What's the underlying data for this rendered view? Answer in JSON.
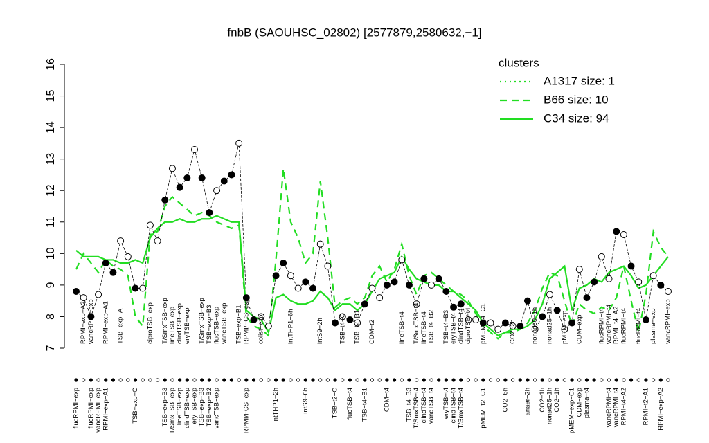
{
  "chart_data": {
    "type": "profile",
    "title": "fnbB (SAOUHSC_02802) [2577879,2580632,−1]",
    "ylim": [
      7,
      16
    ],
    "yticks": [
      7,
      8,
      9,
      10,
      11,
      12,
      13,
      14,
      15,
      16
    ],
    "legend_title": "clusters",
    "legend_corner": "top-right",
    "values": [
      8.8,
      8.6,
      8.0,
      8.7,
      9.7,
      9.4,
      10.4,
      9.9,
      8.9,
      8.9,
      10.9,
      10.4,
      11.7,
      12.7,
      12.1,
      12.4,
      13.3,
      12.4,
      11.3,
      12.0,
      12.3,
      12.5,
      13.5,
      8.6,
      7.9,
      8.0,
      7.7,
      9.3,
      9.7,
      9.3,
      8.9,
      9.1,
      8.9,
      10.3,
      9.6,
      7.8,
      8.0,
      7.9,
      7.8,
      8.4,
      8.9,
      8.6,
      9.0,
      9.1,
      9.8,
      9.0,
      8.4,
      9.2,
      9.0,
      9.2,
      8.8,
      8.3,
      8.4,
      7.9,
      7.9,
      7.8,
      7.8,
      7.6,
      7.8,
      7.7,
      7.7,
      8.5,
      7.6,
      8.0,
      8.7,
      8.2,
      7.6,
      7.8,
      9.5,
      8.6,
      9.1,
      9.9,
      9.2,
      10.7,
      10.6,
      9.6,
      9.1,
      7.9,
      9.3,
      9.0,
      8.8
    ],
    "filled": [
      true,
      false,
      true,
      false,
      true,
      true,
      false,
      false,
      true,
      false,
      false,
      false,
      true,
      false,
      true,
      true,
      false,
      true,
      true,
      false,
      true,
      true,
      false,
      true,
      true,
      false,
      false,
      true,
      true,
      false,
      false,
      true,
      true,
      false,
      false,
      true,
      false,
      true,
      false,
      true,
      false,
      false,
      true,
      true,
      false,
      true,
      false,
      true,
      false,
      true,
      true,
      true,
      true,
      false,
      false,
      true,
      false,
      false,
      true,
      false,
      true,
      true,
      false,
      true,
      false,
      true,
      false,
      true,
      false,
      true,
      true,
      false,
      false,
      true,
      false,
      true,
      false,
      true,
      false,
      true,
      false
    ],
    "top_labels": [
      null,
      "RPMI−exp−A2",
      "vancRPMI−exp",
      null,
      "RPMI−exp−A1",
      null,
      "TSB−exp−A",
      null,
      null,
      null,
      "ciproTSB−exp",
      null,
      "T/SmxTSB−exp",
      "lineTSB−exp",
      "clindTSB−exp",
      "eryTSB−exp",
      null,
      "T/SmxTSB−exp",
      "TSB−exp−B3",
      "flucTSB−exp",
      "vancTSB−exp",
      null,
      "TSB−exp−B1",
      "RPMI/FCS−exp",
      null,
      "colist−exp",
      null,
      null,
      null,
      "intTHP1−6h",
      null,
      null,
      null,
      "intS9−2h",
      null,
      null,
      "TSB−t4−C",
      null,
      "TSB−t2−B1",
      null,
      "CDM−t2",
      null,
      null,
      null,
      "lineTSB−t4",
      null,
      "T/SmxTSB−t4",
      "lineTSB−t4",
      "TSB−t4−B2",
      null,
      "TSB−t4−B3",
      "eryTSB−t4",
      "clindTSB−t4",
      "ciproTSB−t4",
      null,
      "pMEM−t4−C1",
      null,
      null,
      null,
      "CO2−2h",
      null,
      null,
      "nonad50−1h",
      null,
      "nonad25−1h",
      null,
      "pMEM−exp",
      null,
      "CDM−exp",
      null,
      null,
      "flucRPMI−t4",
      "vancRPMI−t4",
      "RPMI−t4−A2",
      "flucRPMI−t4",
      null,
      "flucRPMI−t4",
      null,
      "plasma−exp",
      null,
      "vancRPMI−exp"
    ],
    "bottom_labels": [
      "flucRPMI−exp",
      null,
      "flucRPMI−exp",
      "vancRPMI−exp",
      "RPMI−exp−A1",
      null,
      null,
      null,
      "TSB−exp−C",
      null,
      null,
      null,
      "TSB−exp−B3",
      "T/SmxTSB−exp",
      "lineTSB−exp",
      "clindTSB−exp",
      "eryTSB−exp",
      "TSB−exp−B3",
      "TSB−exp−B2",
      "vancTSB−exp",
      null,
      null,
      null,
      "RPMI/FCS−exp",
      null,
      null,
      null,
      "intTHP1−2h",
      null,
      null,
      null,
      "intS9−6h",
      null,
      null,
      null,
      "TSB−t2−C",
      null,
      "flucTSB−t4",
      null,
      "TSB−t4−B1",
      null,
      null,
      "CDM−t4",
      null,
      null,
      "TSB−t4−B3",
      "T/SmxTSB−t4",
      "clindTSB−t4",
      "vancTSB−t4",
      null,
      "eryTSB−t4",
      "clindTSB−t4",
      "T/SmxTSB−t4",
      null,
      null,
      "pMEM−t2−C1",
      null,
      null,
      "CO2−6h",
      null,
      null,
      "anaer−2h",
      null,
      "CO2−1h",
      "nonad25−1h",
      "CO2−1h",
      null,
      "pMEM−exp−C1",
      "CDM−exp",
      "plasma−t4",
      null,
      null,
      "vancRPMI−t4",
      "vancRPMI−t4",
      "RPMI−t4−A2",
      null,
      null,
      "RPMI−t2−A1",
      null,
      "RPMI−exp−A2",
      null
    ],
    "lines": [
      {
        "name": "A1317 size: 1",
        "style": "dotted",
        "color": "#22dd22"
      },
      {
        "name": "B66 size: 10",
        "style": "dashed",
        "color": "#22dd22",
        "values": [
          9.5,
          10.0,
          9.7,
          9.4,
          9.8,
          9.6,
          9.5,
          9.3,
          8.0,
          7.7,
          10.6,
          10.7,
          11.5,
          11.8,
          11.6,
          11.4,
          11.2,
          11.3,
          11.2,
          11.0,
          10.9,
          10.8,
          10.9,
          8.0,
          7.7,
          7.6,
          7.4,
          9.8,
          12.7,
          11.0,
          10.5,
          9.7,
          10.0,
          12.3,
          10.5,
          8.3,
          8.5,
          8.6,
          8.4,
          8.6,
          9.3,
          9.6,
          9.1,
          9.5,
          10.3,
          9.3,
          8.7,
          9.3,
          9.4,
          9.2,
          9.0,
          8.8,
          8.7,
          8.5,
          8.1,
          7.7,
          7.5,
          7.3,
          7.5,
          7.5,
          7.6,
          7.8,
          8.2,
          8.9,
          9.4,
          9.3,
          8.5,
          7.7,
          8.4,
          8.2,
          8.1,
          8.3,
          8.2,
          8.6,
          9.6,
          8.5,
          7.5,
          8.7,
          10.7,
          10.2,
          9.9
        ]
      },
      {
        "name": "C34 size: 94",
        "style": "solid",
        "color": "#22dd22",
        "values": [
          10.1,
          9.9,
          9.9,
          9.9,
          9.8,
          9.8,
          9.7,
          9.7,
          9.8,
          9.7,
          10.5,
          10.8,
          11.0,
          11.0,
          11.1,
          11.0,
          11.0,
          11.1,
          11.1,
          11.2,
          11.1,
          11.0,
          11.0,
          8.2,
          8.0,
          7.9,
          7.5,
          8.6,
          8.7,
          8.5,
          8.4,
          8.4,
          8.5,
          8.8,
          8.6,
          8.2,
          8.4,
          8.4,
          8.2,
          8.4,
          8.8,
          9.2,
          9.3,
          9.4,
          9.9,
          9.5,
          9.2,
          9.1,
          9.0,
          9.0,
          8.8,
          8.8,
          8.6,
          8.4,
          8.2,
          7.8,
          7.6,
          7.4,
          7.5,
          7.6,
          7.6,
          7.7,
          7.9,
          8.4,
          9.2,
          9.4,
          9.6,
          8.2,
          8.9,
          9.0,
          9.2,
          9.1,
          9.4,
          9.5,
          9.6,
          9.3,
          8.9,
          9.0,
          9.3,
          9.6,
          9.9
        ]
      }
    ]
  }
}
